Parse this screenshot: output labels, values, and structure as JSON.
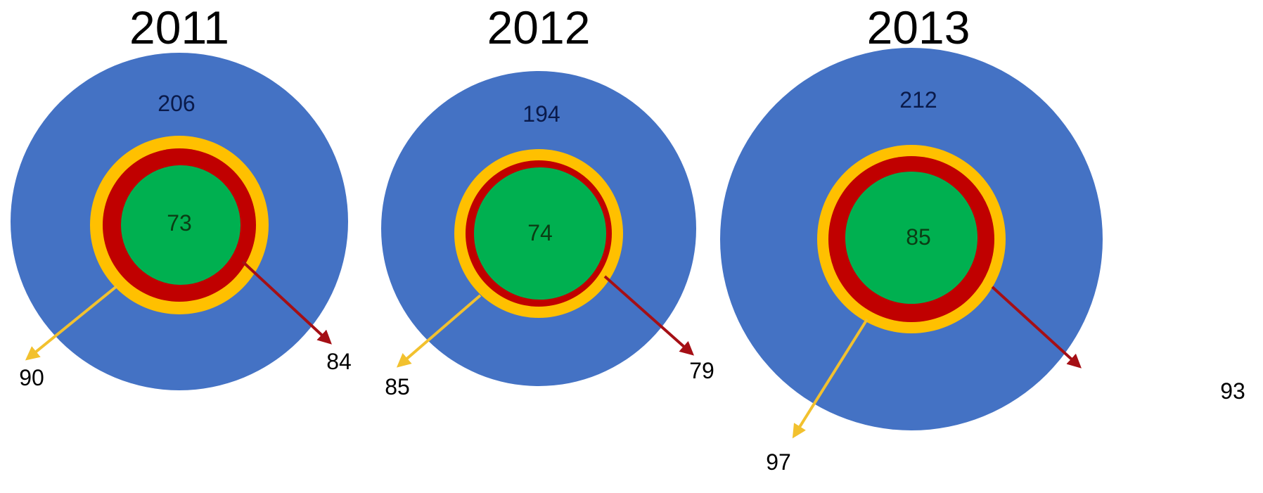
{
  "colors": {
    "outer": "#4472c4",
    "yellow_ring": "#ffc000",
    "red_ring": "#c00000",
    "inner": "#00b050",
    "yellow_arrow": "#f2c12e",
    "red_arrow": "#a50f15",
    "outer_text": "#0a1a4a",
    "inner_text": "#0b3d14"
  },
  "chart_data": {
    "type": "diagram",
    "panels": [
      {
        "year": "2011",
        "outer_value": "206",
        "inner_value": "73",
        "yellow_value": "90",
        "red_value": "84"
      },
      {
        "year": "2012",
        "outer_value": "194",
        "inner_value": "74",
        "yellow_value": "85",
        "red_value": "79"
      },
      {
        "year": "2013",
        "outer_value": "212",
        "inner_value": "85",
        "yellow_value": "97",
        "red_value": "93"
      }
    ]
  }
}
